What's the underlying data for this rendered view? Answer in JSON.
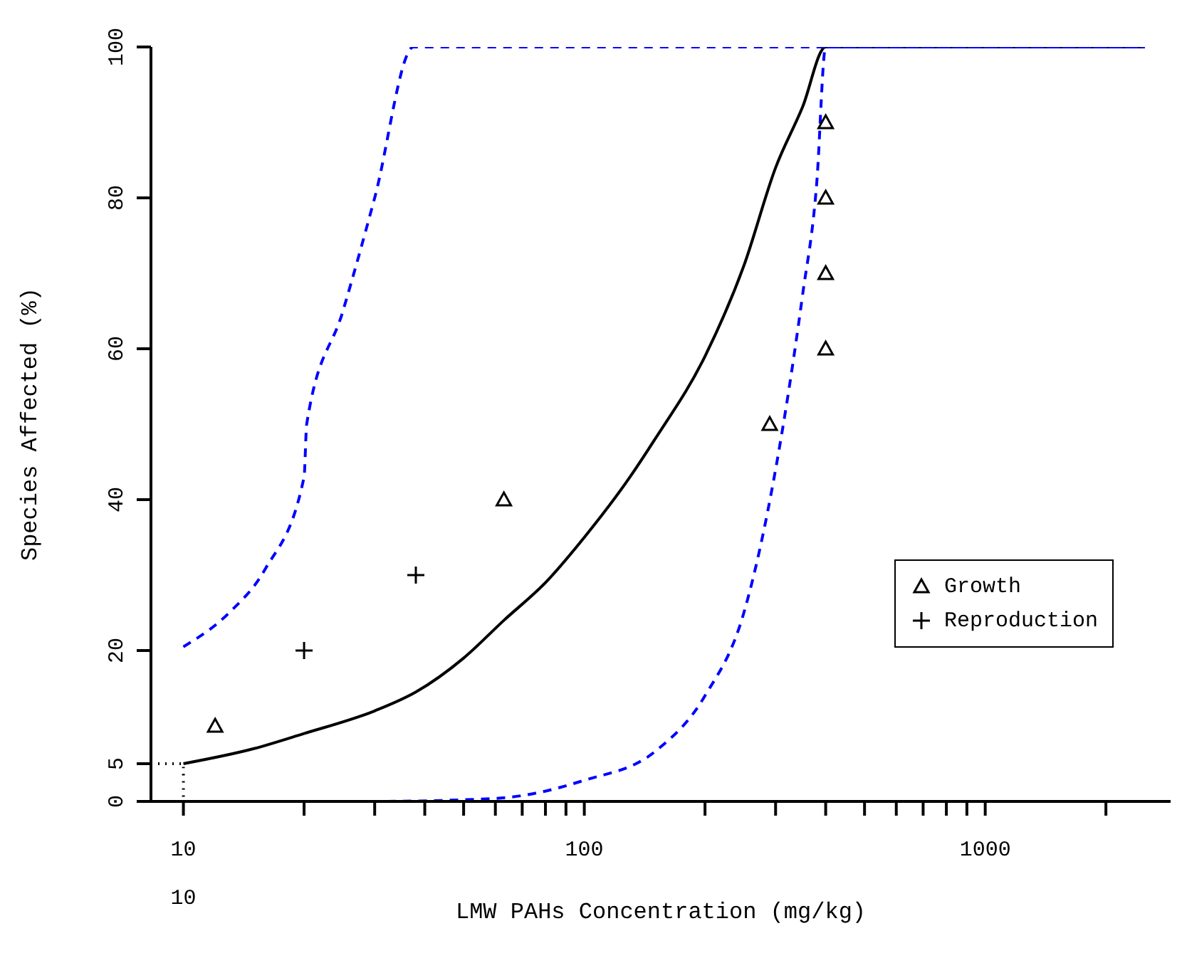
{
  "chart_data": {
    "type": "line",
    "xlabel": "LMW PAHs Concentration (mg/kg)",
    "ylabel": "Species Affected (%)",
    "log": "x",
    "xlim": [
      8.3,
      2900
    ],
    "ylim": [
      0,
      100
    ],
    "xticks": [
      10,
      {
        "value": 20,
        "label": null
      },
      {
        "value": 30,
        "label": null
      },
      {
        "value": 40,
        "label": null
      },
      {
        "value": 50,
        "label": null
      },
      {
        "value": 60,
        "label": null
      },
      {
        "value": 70,
        "label": null
      },
      {
        "value": 80,
        "label": null
      },
      {
        "value": 90,
        "label": null
      },
      100,
      {
        "value": 200,
        "label": null
      },
      {
        "value": 300,
        "label": null
      },
      {
        "value": 400,
        "label": null
      },
      {
        "value": 500,
        "label": null
      },
      {
        "value": 600,
        "label": null
      },
      {
        "value": 700,
        "label": null
      },
      {
        "value": 800,
        "label": null
      },
      {
        "value": 900,
        "label": null
      },
      1000,
      {
        "value": 2000,
        "label": null
      }
    ],
    "yticks": [
      0,
      5,
      20,
      40,
      60,
      80,
      100
    ],
    "legend": "right",
    "annotations": [
      "10"
    ],
    "series": [
      {
        "name": "Growth",
        "type": "scatter",
        "marker": "triangle",
        "color": "#000000",
        "x": [
          12,
          63,
          290,
          400,
          400,
          400,
          400
        ],
        "values": [
          10,
          40,
          50,
          60,
          70,
          80,
          90
        ]
      },
      {
        "name": "Reproduction",
        "type": "scatter",
        "marker": "cross",
        "color": "#000000",
        "x": [
          20,
          38
        ],
        "values": [
          20,
          30
        ]
      },
      {
        "marker": "none",
        "line_style": "solid",
        "color": "#000000",
        "x": [
          10,
          15,
          20,
          30,
          38,
          50,
          63,
          80,
          100,
          130,
          150,
          200,
          250,
          300,
          350,
          400,
          2500
        ],
        "values": [
          5,
          7,
          9,
          12,
          14.5,
          19,
          24,
          29,
          35,
          43,
          48,
          59,
          71,
          84,
          92,
          100,
          100
        ]
      },
      {
        "marker": "none",
        "line_style": "dashed",
        "color": "#0000ff",
        "x": [
          10,
          13,
          16,
          20,
          20.3,
          25,
          30,
          37.5,
          2500
        ],
        "values": [
          20.5,
          25,
          30.8,
          43,
          50,
          65,
          80,
          100,
          100
        ]
      },
      {
        "marker": "none",
        "line_style": "dashed",
        "color": "#0000ff",
        "x": [
          10,
          30,
          60,
          100,
          150,
          200,
          250,
          300,
          350,
          380,
          400,
          2500
        ],
        "values": [
          0,
          0,
          0.4,
          2.8,
          6.6,
          14,
          25,
          44,
          67,
          82,
          100,
          100
        ]
      },
      {
        "marker": "none",
        "line_style": "dotted",
        "color": "#000000",
        "x": [
          8.3,
          10,
          10
        ],
        "values": [
          5,
          5,
          0
        ]
      }
    ]
  }
}
